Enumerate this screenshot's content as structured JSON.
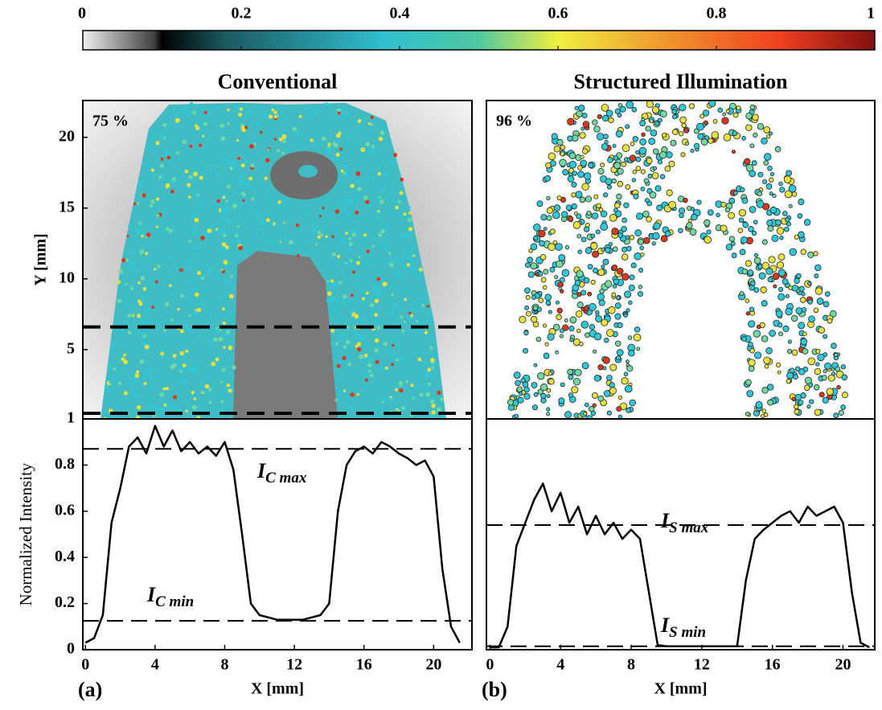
{
  "chart_data": [
    {
      "type": "colorbar",
      "xlim": [
        0,
        1
      ],
      "xticks": [
        0,
        0.2,
        0.4,
        0.6,
        0.8,
        1
      ]
    },
    {
      "type": "image",
      "title": "Conventional",
      "annotation": "75 %",
      "ylabel": "Y [mm]",
      "ylim": [
        0.1,
        22.6
      ],
      "yticks": [
        5,
        10,
        15,
        20
      ],
      "dashed_lines": [
        6.6,
        0.5
      ]
    },
    {
      "type": "image",
      "title": "Structured Illumination",
      "annotation": "96 %",
      "ylim": [
        0.1,
        22.6
      ]
    },
    {
      "type": "line",
      "panel_label": "(a)",
      "xlabel": "X [mm]",
      "ylabel": "Normalized Intensity",
      "xlim": [
        -0.15,
        22.2
      ],
      "ylim": [
        0,
        1
      ],
      "xticks": [
        0,
        4,
        8,
        12,
        16,
        20
      ],
      "yticks": [
        0,
        0.2,
        0.4,
        0.6,
        0.8,
        1
      ],
      "x": [
        0,
        0.5,
        1,
        1.5,
        2,
        2.5,
        3,
        3.5,
        4,
        4.5,
        5,
        5.5,
        6,
        6.5,
        7,
        7.5,
        8,
        8.5,
        9,
        9.5,
        10,
        10.5,
        11,
        11.5,
        12,
        12.5,
        13,
        13.5,
        14,
        14.5,
        15,
        15.5,
        16,
        16.5,
        17,
        17.5,
        18,
        18.5,
        19,
        19.5,
        20,
        20.5,
        21,
        21.5
      ],
      "series": [
        {
          "color": "#000000",
          "values": [
            0.03,
            0.05,
            0.15,
            0.55,
            0.7,
            0.88,
            0.92,
            0.85,
            0.97,
            0.88,
            0.95,
            0.86,
            0.9,
            0.85,
            0.88,
            0.84,
            0.9,
            0.78,
            0.5,
            0.2,
            0.15,
            0.14,
            0.13,
            0.13,
            0.13,
            0.13,
            0.14,
            0.15,
            0.2,
            0.6,
            0.8,
            0.86,
            0.88,
            0.85,
            0.9,
            0.88,
            0.85,
            0.83,
            0.8,
            0.82,
            0.75,
            0.35,
            0.1,
            0.03
          ]
        }
      ],
      "reference_lines": [
        {
          "value": 0.87,
          "label": "I",
          "sublabel": "C max"
        },
        {
          "value": 0.125,
          "label": "I",
          "sublabel": "C min"
        }
      ]
    },
    {
      "type": "line",
      "panel_label": "(b)",
      "xlabel": "X [mm]",
      "xlim": [
        -0.2,
        21.8
      ],
      "ylim": [
        0,
        1
      ],
      "xticks": [
        0,
        4,
        8,
        12,
        16,
        20
      ],
      "x": [
        0,
        0.5,
        1,
        1.5,
        2,
        2.5,
        3,
        3.5,
        4,
        4.5,
        5,
        5.5,
        6,
        6.5,
        7,
        7.5,
        8,
        8.5,
        9,
        9.5,
        10,
        10.5,
        11,
        11.5,
        12,
        12.5,
        13,
        13.5,
        14,
        14.5,
        15,
        15.5,
        16,
        16.5,
        17,
        17.5,
        18,
        18.5,
        19,
        19.5,
        20,
        20.5,
        21,
        21.5
      ],
      "series": [
        {
          "color": "#000000",
          "values": [
            0.01,
            0.01,
            0.1,
            0.45,
            0.55,
            0.65,
            0.72,
            0.6,
            0.68,
            0.55,
            0.62,
            0.5,
            0.58,
            0.5,
            0.55,
            0.48,
            0.52,
            0.48,
            0.25,
            0.02,
            0.015,
            0.015,
            0.015,
            0.015,
            0.015,
            0.015,
            0.015,
            0.015,
            0.015,
            0.3,
            0.48,
            0.52,
            0.55,
            0.58,
            0.6,
            0.55,
            0.62,
            0.58,
            0.6,
            0.62,
            0.55,
            0.25,
            0.03,
            0.01
          ]
        }
      ],
      "reference_lines": [
        {
          "value": 0.54,
          "label": "I",
          "sublabel": "S max"
        },
        {
          "value": 0.015,
          "label": "I",
          "sublabel": "S min"
        }
      ]
    }
  ]
}
